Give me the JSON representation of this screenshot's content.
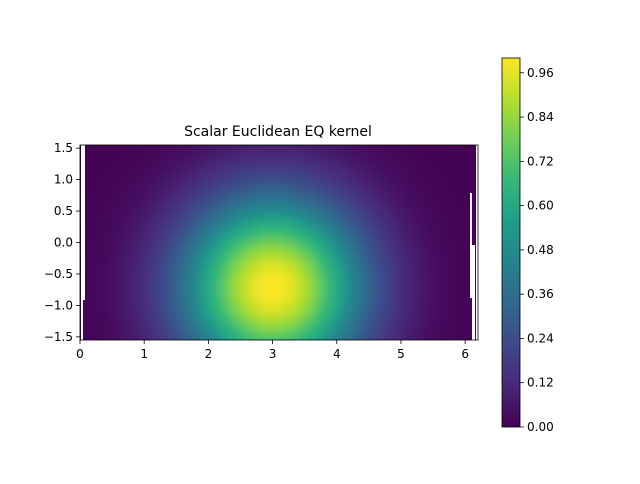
{
  "chart_data": {
    "type": "heatmap",
    "title": "Scalar Euclidean EQ kernel",
    "xlabel": "",
    "ylabel": "",
    "xlim": [
      0,
      6.2
    ],
    "ylim": [
      -1.55,
      1.55
    ],
    "x_ticks": [
      "0",
      "1",
      "2",
      "3",
      "4",
      "5",
      "6"
    ],
    "y_ticks": [
      "1.5",
      "1.0",
      "0.5",
      "0.0",
      "−0.5",
      "−1.0",
      "−1.5"
    ],
    "kernel_center": {
      "x": 3.0,
      "y": -0.72
    },
    "kernel_lengthscale": 1.0,
    "value_range": [
      0.0,
      1.0
    ],
    "colormap": "viridis",
    "colorbar": {
      "ticks": [
        "0.00",
        "0.12",
        "0.24",
        "0.36",
        "0.48",
        "0.60",
        "0.72",
        "0.84",
        "0.96"
      ],
      "tick_values": [
        0.0,
        0.12,
        0.24,
        0.36,
        0.48,
        0.6,
        0.72,
        0.84,
        0.96
      ],
      "range": [
        0.0,
        1.0
      ]
    },
    "grid": false
  }
}
